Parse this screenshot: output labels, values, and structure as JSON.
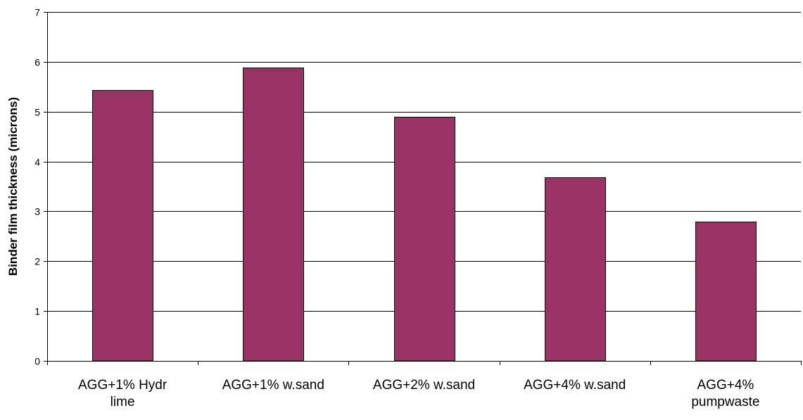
{
  "chart_data": {
    "type": "bar",
    "title": "",
    "xlabel": "",
    "ylabel": "Binder film thickness (microns)",
    "categories": [
      [
        "AGG+1% Hydr",
        "lime"
      ],
      [
        "AGG+1% w.sand"
      ],
      [
        "AGG+2% w.sand"
      ],
      [
        "AGG+4% w.sand"
      ],
      [
        "AGG+4%",
        "pumpwaste"
      ]
    ],
    "values": [
      5.43,
      5.88,
      4.9,
      3.68,
      2.8
    ],
    "ylim": [
      0,
      7
    ],
    "yticks": [
      0,
      1,
      2,
      3,
      4,
      5,
      6,
      7
    ],
    "grid": true,
    "legend": "none",
    "colors": {
      "bar_fill": "#993366",
      "bar_stroke": "#000000",
      "gridline": "#000000",
      "axis": "#000000"
    }
  }
}
